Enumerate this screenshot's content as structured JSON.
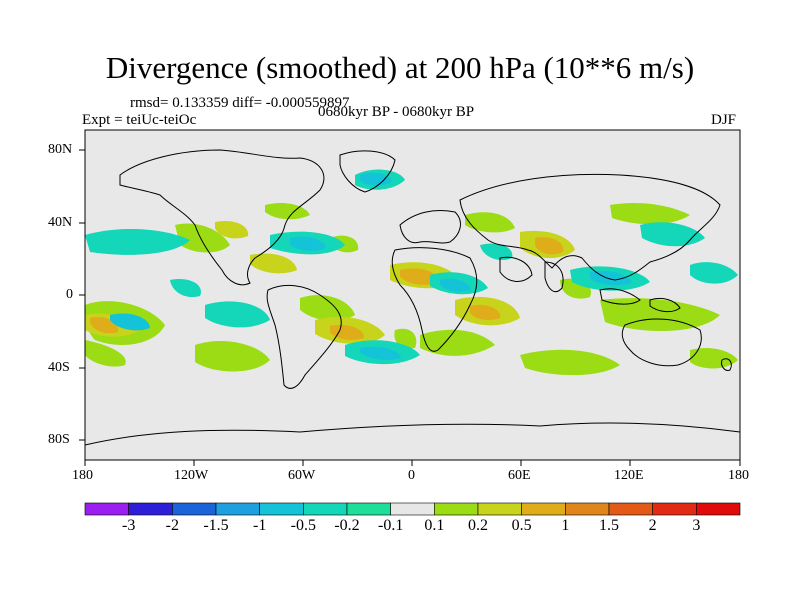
{
  "title": "Divergence (smoothed) at 200 hPa (10**6 m/s)",
  "stats_line": "rmsd= 0.133359 diff= -0.000559897",
  "experiment_line": "Expt = teiUc-teiOc",
  "period_line": "0680kyr BP - 0680kyr BP",
  "season": "DJF",
  "axes": {
    "lat_ticks": [
      "80N",
      "40N",
      "0",
      "40S",
      "80S"
    ],
    "lon_ticks": [
      "180",
      "120W",
      "60W",
      "0",
      "60E",
      "120E",
      "180"
    ]
  },
  "colorbar": {
    "labels": [
      "-3",
      "-2",
      "-1.5",
      "-1",
      "-0.5",
      "-0.2",
      "-0.1",
      "0.1",
      "0.2",
      "0.5",
      "1",
      "1.5",
      "2",
      "3"
    ],
    "colors": [
      "#9b1ff0",
      "#2d1fd7",
      "#1a63d8",
      "#1d9fe0",
      "#14c3d8",
      "#14d6b8",
      "#1ddf9a",
      "#e7e7e7",
      "#9bdc14",
      "#c8d31b",
      "#e0ad1a",
      "#e0851a",
      "#e35a17",
      "#e02a14",
      "#e00a0a"
    ]
  },
  "colors": {
    "ocean_background": "#e8e8e8",
    "coastline": "#000000"
  }
}
